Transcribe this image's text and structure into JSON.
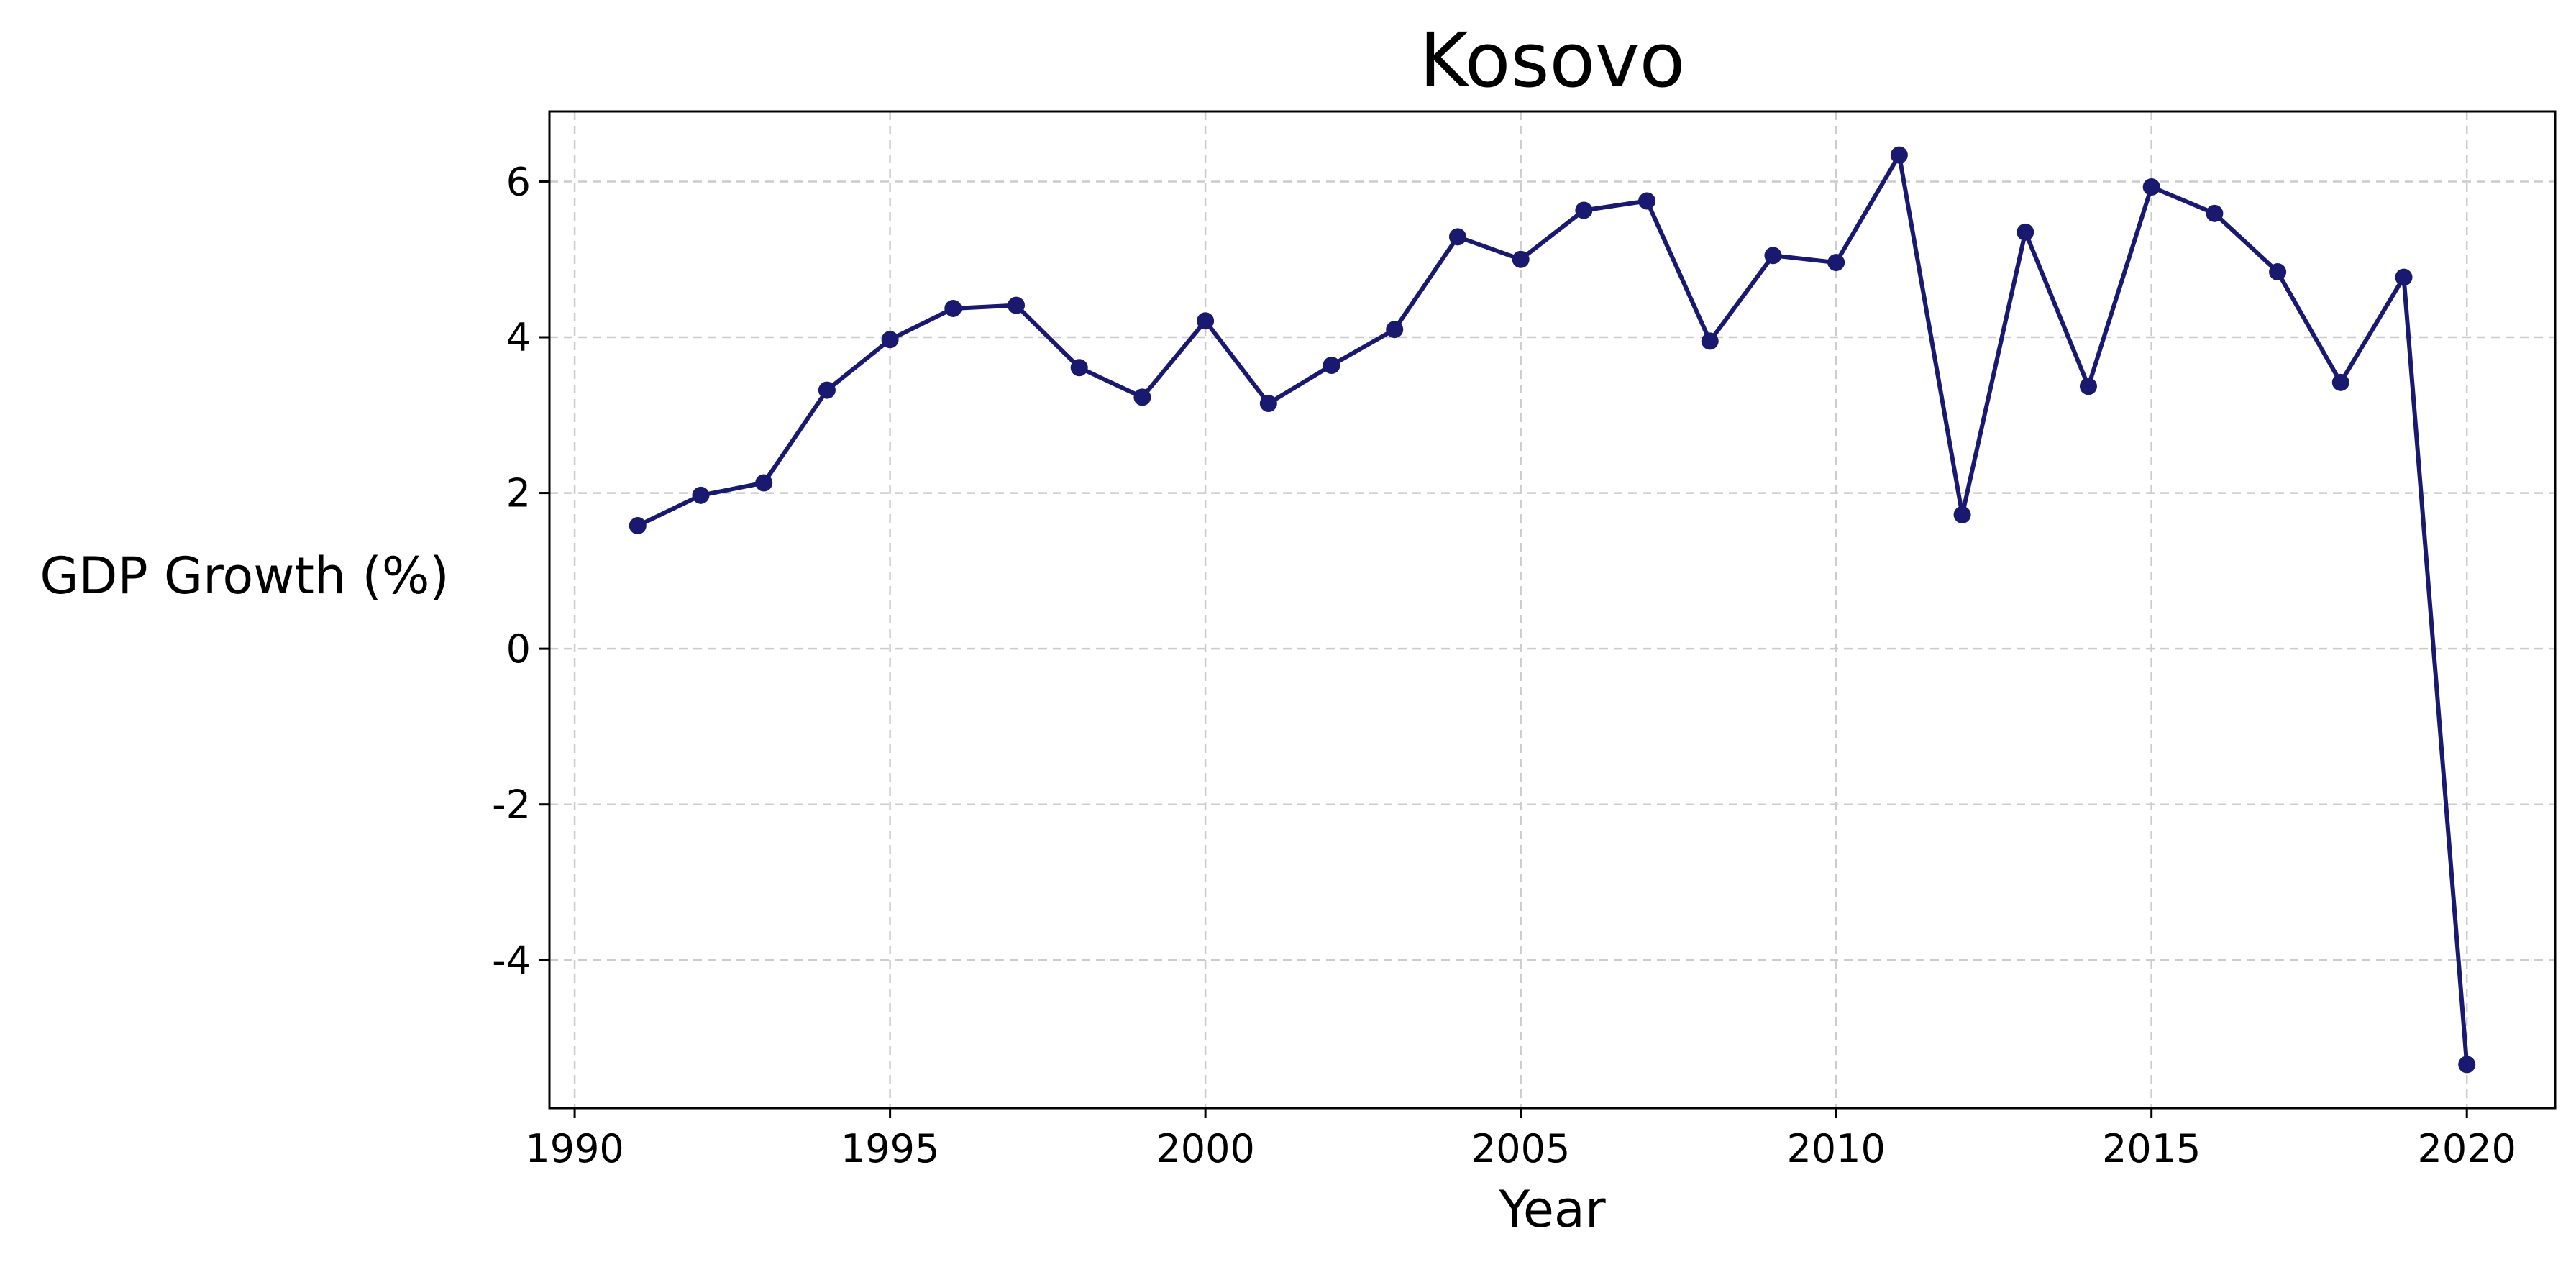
{
  "chart_data": {
    "type": "line",
    "title": "Kosovo",
    "xlabel": "Year",
    "ylabel": "GDP Growth (%)",
    "xlim": [
      1989.6,
      2021.4
    ],
    "ylim": [
      -5.9,
      6.9
    ],
    "xticks": [
      1990,
      1995,
      2000,
      2005,
      2010,
      2015,
      2020
    ],
    "yticks": [
      -4,
      -2,
      0,
      2,
      4,
      6
    ],
    "ytick_labels": [
      "-4",
      "-2",
      "0",
      "2",
      "4",
      "6"
    ],
    "grid": true,
    "line_color": "#191970",
    "marker": "circle",
    "series": [
      {
        "x": [
          1991,
          1992,
          1993,
          1994,
          1995,
          1996,
          1997,
          1998,
          1999,
          2000,
          2001,
          2002,
          2003,
          2004,
          2005,
          2006,
          2007,
          2008,
          2009,
          2010,
          2011,
          2012,
          2013,
          2014,
          2015,
          2016,
          2017,
          2018,
          2019,
          2020
        ],
        "y": [
          1.58,
          1.97,
          2.13,
          3.32,
          3.97,
          4.37,
          4.41,
          3.61,
          3.23,
          4.21,
          3.15,
          3.64,
          4.1,
          5.29,
          5.0,
          5.63,
          5.75,
          3.95,
          5.05,
          4.96,
          6.34,
          1.72,
          5.35,
          3.37,
          5.93,
          5.59,
          4.84,
          3.42,
          4.77,
          -5.34
        ]
      }
    ]
  }
}
